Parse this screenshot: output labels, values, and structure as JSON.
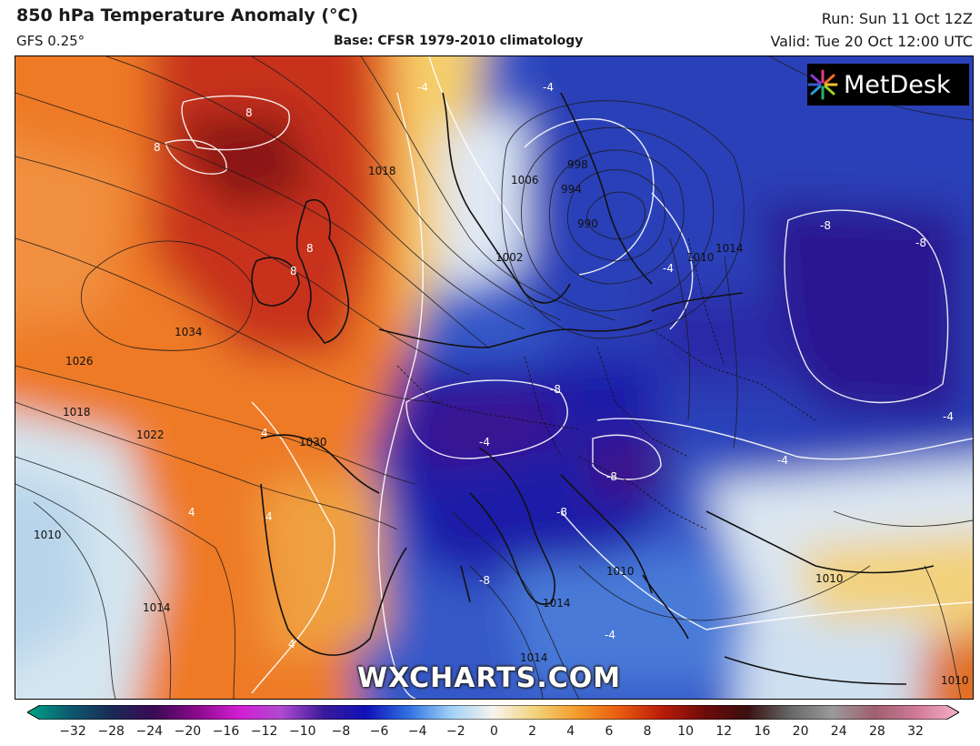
{
  "header": {
    "title": "850 hPa Temperature Anomaly (°C)",
    "model": "GFS 0.25°",
    "base": "Base: CFSR 1979-2010 climatology",
    "run": "Run: Sun 11 Oct 12Z",
    "valid": "Valid: Tue 20 Oct 12:00 UTC"
  },
  "branding": {
    "logo_text": "MetDesk",
    "watermark": "WXCHARTS.COM"
  },
  "map": {
    "isobar_labels": [
      "1034",
      "1030",
      "1026",
      "1022",
      "1018",
      "1018",
      "1014",
      "1014",
      "1014",
      "1014",
      "1010",
      "1010",
      "1010",
      "1010",
      "1010",
      "1006",
      "1002",
      "998",
      "994",
      "990"
    ],
    "anomaly_labels": [
      "8",
      "8",
      "8",
      "8",
      "-4",
      "-4",
      "-4",
      "-4",
      "-4",
      "-4",
      "-4",
      "-8",
      "-8",
      "-8",
      "-8",
      "-8",
      "-8",
      "4",
      "4",
      "4",
      "4"
    ]
  },
  "colorbar": {
    "ticks": [
      "−32",
      "−28",
      "−24",
      "−20",
      "−16",
      "−12",
      "−10",
      "−8",
      "−6",
      "−4",
      "−2",
      "0",
      "2",
      "4",
      "6",
      "8",
      "10",
      "12",
      "16",
      "20",
      "24",
      "28",
      "32"
    ],
    "colors": [
      "#00a58a",
      "#0c5a6e",
      "#1a2a55",
      "#3a0a55",
      "#8a0a8a",
      "#d21ed2",
      "#b04ad0",
      "#3a1a9a",
      "#1010b8",
      "#3070e0",
      "#a0d0f5",
      "#f7f4ee",
      "#f3d27a",
      "#f39a2a",
      "#e85a10",
      "#b81c0a",
      "#6e0a0a",
      "#3a1010",
      "#666666",
      "#9a9a9a",
      "#a06070",
      "#d07a98",
      "#f4b0c8"
    ]
  }
}
